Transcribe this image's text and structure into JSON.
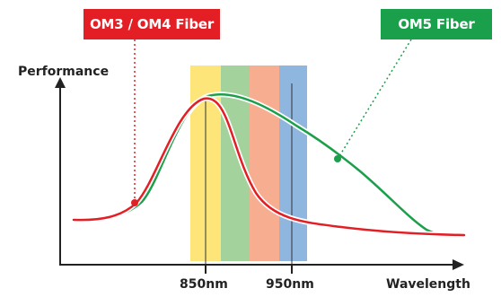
{
  "labels": {
    "om3_om4": "OM3 / OM4 Fiber",
    "om5": "OM5 Fiber",
    "y_axis": "Performance",
    "x_axis": "Wavelength",
    "tick_850": "850nm",
    "tick_950": "950nm"
  },
  "colors": {
    "om3_om4": "#e31e24",
    "om5": "#1a9f4a",
    "band_yellow": "#fde57a",
    "band_green": "#a3d29c",
    "band_orange": "#f7ad8f",
    "band_blue": "#8fb6df",
    "axis": "#222222"
  }
}
